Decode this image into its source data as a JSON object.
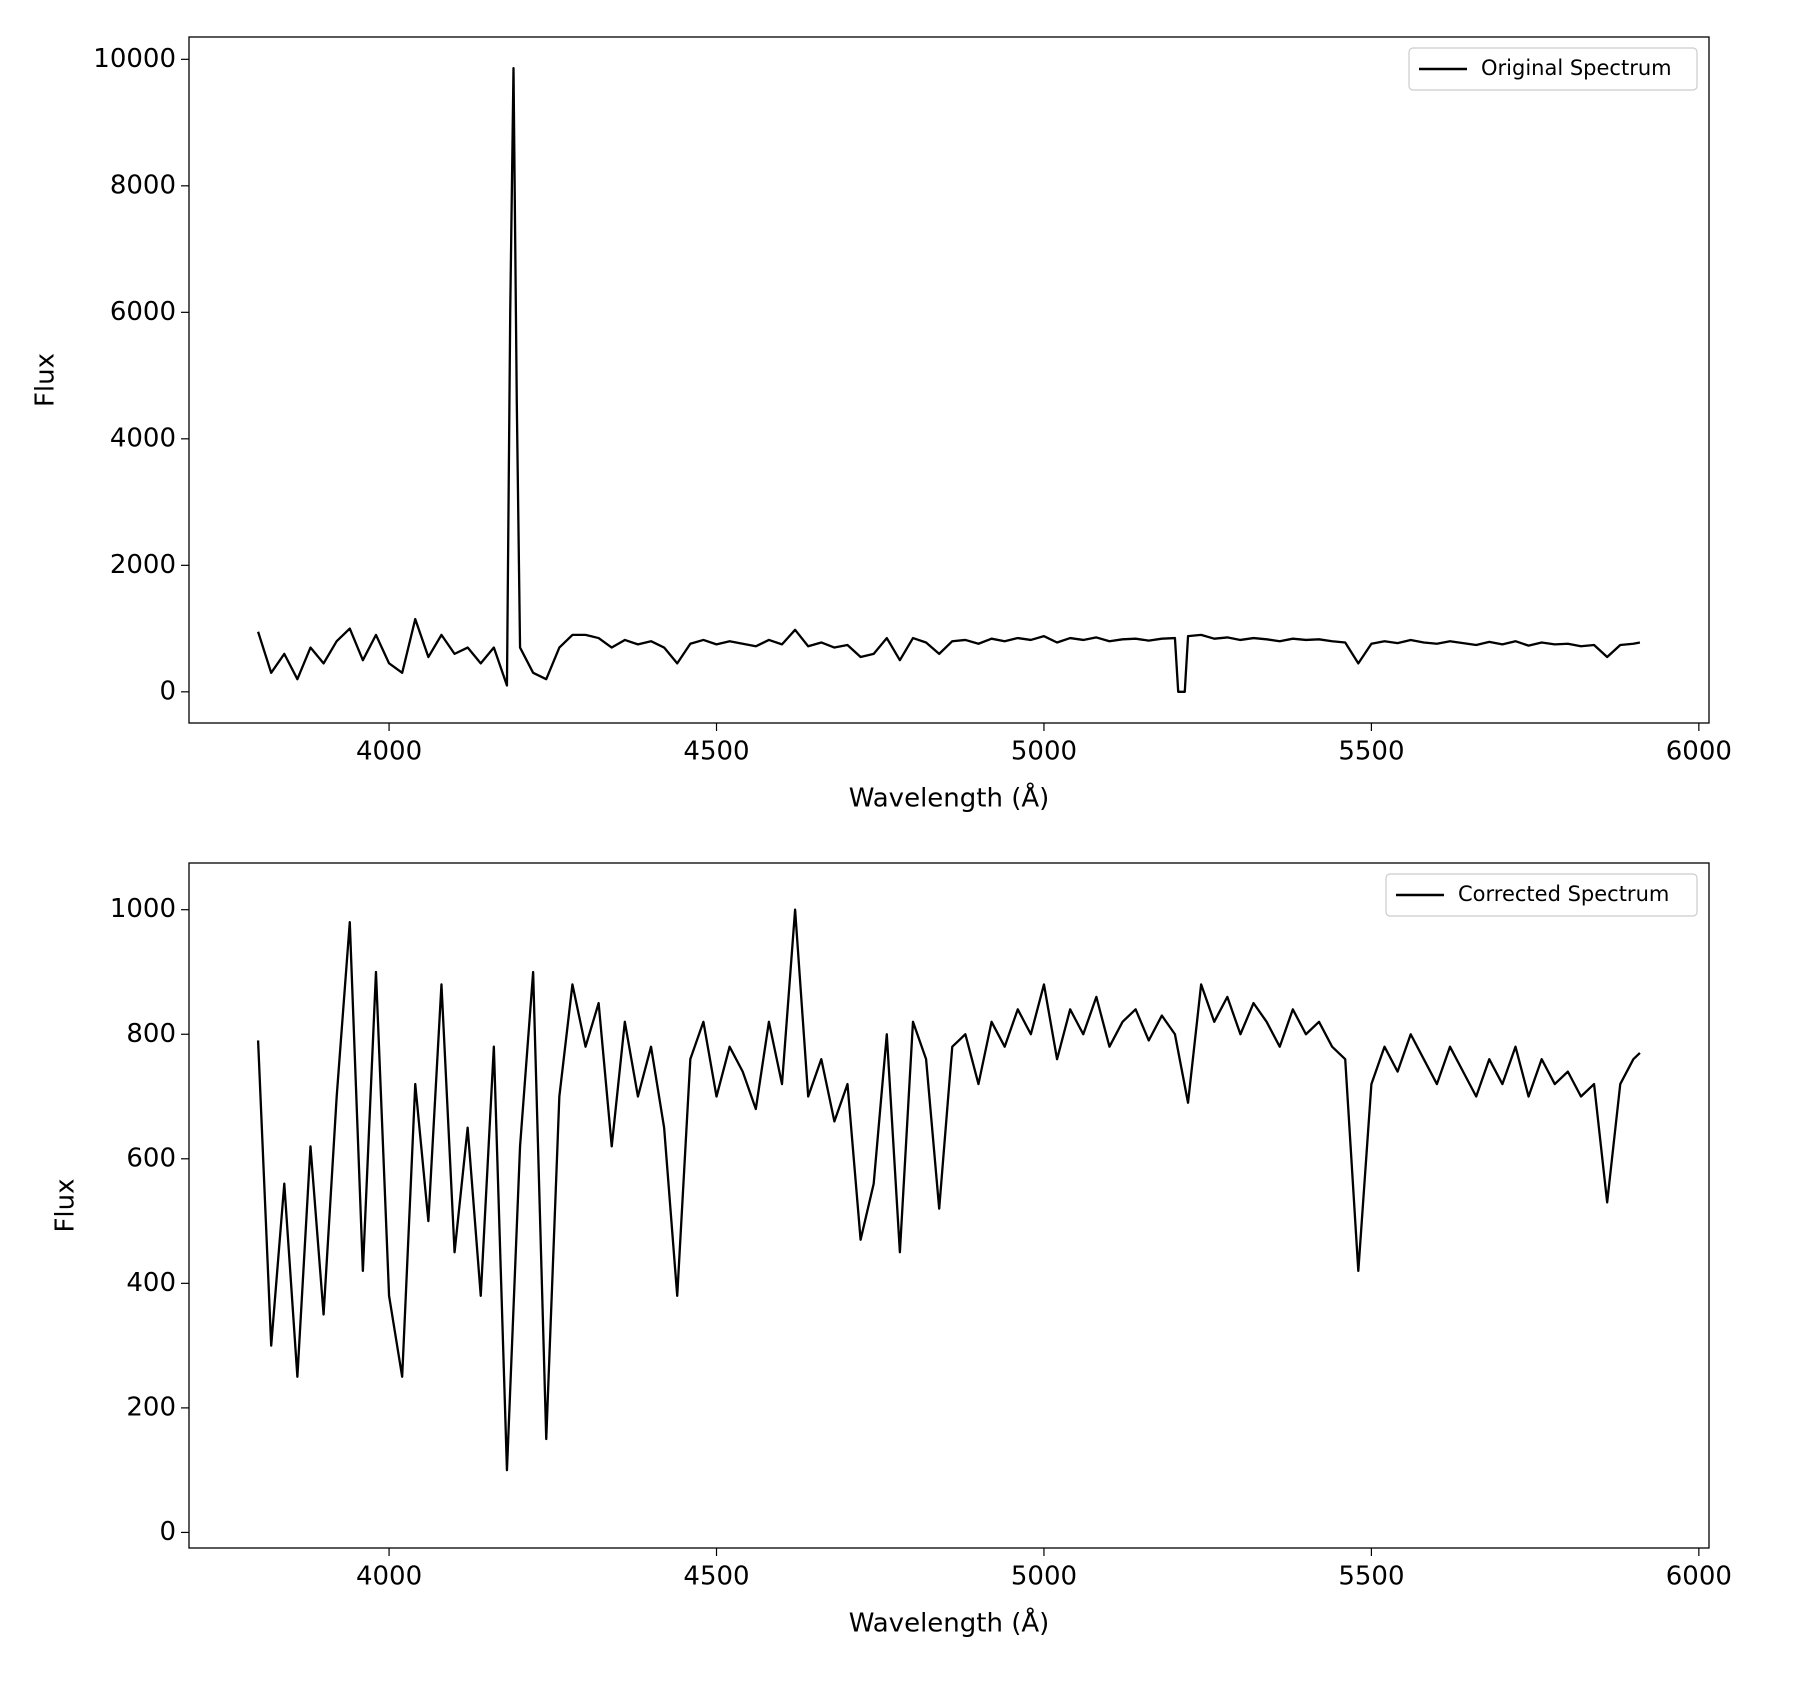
{
  "chart_data": [
    {
      "type": "line",
      "xlabel": "Wavelength (Å)",
      "ylabel": "Flux",
      "xlim": [
        3694.5,
        6015.5
      ],
      "xticks": [
        4000,
        4500,
        5000,
        5500,
        6000
      ],
      "ylim": [
        -493,
        10353
      ],
      "yticks": [
        0,
        2000,
        4000,
        6000,
        8000,
        10000
      ],
      "legend": "upper right",
      "x": [
        3800,
        3820,
        3840,
        3860,
        3880,
        3900,
        3920,
        3940,
        3960,
        3980,
        4000,
        4020,
        4040,
        4060,
        4080,
        4100,
        4120,
        4140,
        4160,
        4180,
        4185,
        4190,
        4195,
        4200,
        4220,
        4240,
        4260,
        4280,
        4300,
        4320,
        4340,
        4360,
        4380,
        4400,
        4420,
        4440,
        4460,
        4480,
        4500,
        4520,
        4540,
        4560,
        4580,
        4600,
        4620,
        4640,
        4660,
        4680,
        4700,
        4720,
        4740,
        4760,
        4780,
        4800,
        4820,
        4840,
        4860,
        4880,
        4900,
        4920,
        4940,
        4960,
        4980,
        5000,
        5020,
        5040,
        5060,
        5080,
        5100,
        5120,
        5140,
        5160,
        5180,
        5200,
        5205,
        5210,
        5215,
        5220,
        5240,
        5260,
        5280,
        5300,
        5320,
        5340,
        5360,
        5380,
        5400,
        5420,
        5440,
        5460,
        5480,
        5500,
        5520,
        5540,
        5560,
        5580,
        5600,
        5620,
        5640,
        5660,
        5680,
        5700,
        5720,
        5740,
        5760,
        5780,
        5800,
        5820,
        5840,
        5860,
        5880,
        5900,
        5910
      ],
      "series": [
        {
          "name": "Original Spectrum",
          "color": "#000000",
          "values": [
            950,
            300,
            600,
            200,
            700,
            450,
            800,
            1000,
            500,
            900,
            450,
            300,
            1150,
            550,
            900,
            600,
            700,
            450,
            700,
            100,
            6000,
            9860,
            4600,
            700,
            300,
            200,
            700,
            900,
            900,
            850,
            700,
            820,
            750,
            800,
            700,
            450,
            760,
            820,
            750,
            800,
            760,
            720,
            820,
            750,
            980,
            720,
            780,
            700,
            740,
            550,
            600,
            850,
            500,
            850,
            780,
            600,
            800,
            820,
            760,
            840,
            800,
            850,
            820,
            880,
            780,
            850,
            820,
            860,
            800,
            830,
            840,
            810,
            840,
            850,
            0,
            0,
            0,
            880,
            900,
            840,
            860,
            820,
            850,
            830,
            800,
            840,
            820,
            830,
            800,
            780,
            450,
            760,
            800,
            770,
            820,
            780,
            760,
            800,
            770,
            740,
            790,
            750,
            800,
            730,
            780,
            750,
            760,
            720,
            740,
            550,
            740,
            760,
            780
          ]
        }
      ]
    },
    {
      "type": "line",
      "xlabel": "Wavelength (Å)",
      "ylabel": "Flux",
      "xlim": [
        3694.5,
        6015.5
      ],
      "xticks": [
        4000,
        4500,
        5000,
        5500,
        6000
      ],
      "ylim": [
        -25,
        1075
      ],
      "yticks": [
        0,
        200,
        400,
        600,
        800,
        1000
      ],
      "legend": "upper right",
      "x": [
        3800,
        3820,
        3840,
        3860,
        3880,
        3900,
        3920,
        3940,
        3960,
        3980,
        4000,
        4020,
        4040,
        4060,
        4080,
        4100,
        4120,
        4140,
        4160,
        4180,
        4200,
        4220,
        4240,
        4260,
        4280,
        4300,
        4320,
        4340,
        4360,
        4380,
        4400,
        4420,
        4440,
        4460,
        4480,
        4500,
        4520,
        4540,
        4560,
        4580,
        4600,
        4620,
        4640,
        4660,
        4680,
        4700,
        4720,
        4740,
        4760,
        4780,
        4800,
        4820,
        4840,
        4860,
        4880,
        4900,
        4920,
        4940,
        4960,
        4980,
        5000,
        5020,
        5040,
        5060,
        5080,
        5100,
        5120,
        5140,
        5160,
        5180,
        5200,
        5220,
        5240,
        5260,
        5280,
        5300,
        5320,
        5340,
        5360,
        5380,
        5400,
        5420,
        5440,
        5460,
        5480,
        5500,
        5520,
        5540,
        5560,
        5580,
        5600,
        5620,
        5640,
        5660,
        5680,
        5700,
        5720,
        5740,
        5760,
        5780,
        5800,
        5820,
        5840,
        5860,
        5880,
        5900,
        5910
      ],
      "series": [
        {
          "name": "Corrected Spectrum",
          "color": "#000000",
          "values": [
            790,
            300,
            560,
            250,
            620,
            350,
            700,
            980,
            420,
            900,
            380,
            250,
            720,
            500,
            880,
            450,
            650,
            380,
            780,
            100,
            620,
            900,
            150,
            700,
            880,
            780,
            850,
            620,
            820,
            700,
            780,
            650,
            380,
            760,
            820,
            700,
            780,
            740,
            680,
            820,
            720,
            1000,
            700,
            760,
            660,
            720,
            470,
            560,
            800,
            450,
            820,
            760,
            520,
            780,
            800,
            720,
            820,
            780,
            840,
            800,
            880,
            760,
            840,
            800,
            860,
            780,
            820,
            840,
            790,
            830,
            800,
            690,
            880,
            820,
            860,
            800,
            850,
            820,
            780,
            840,
            800,
            820,
            780,
            760,
            420,
            720,
            780,
            740,
            800,
            760,
            720,
            780,
            740,
            700,
            760,
            720,
            780,
            700,
            760,
            720,
            740,
            700,
            720,
            530,
            720,
            760,
            770
          ]
        }
      ]
    }
  ]
}
